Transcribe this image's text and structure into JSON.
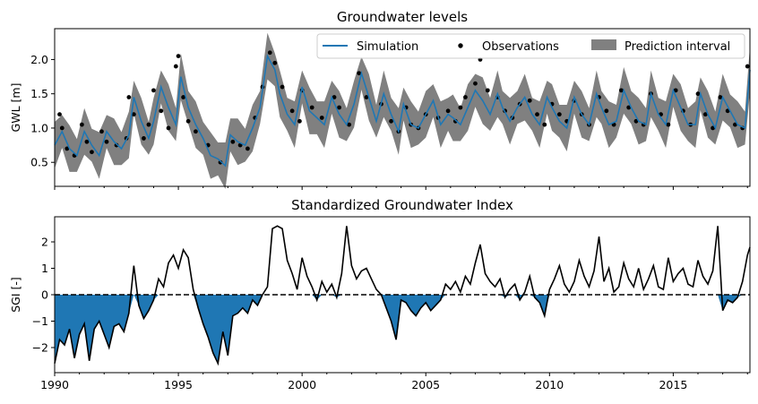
{
  "chart_data": [
    {
      "type": "line",
      "title": "Groundwater levels",
      "ylabel": "GWL [m]",
      "ylim": [
        0.15,
        2.45
      ],
      "xlim": [
        1990,
        2018.1
      ],
      "yticks": [
        "0.5",
        "1.0",
        "1.5",
        "2.0"
      ],
      "legend": {
        "placement": "top-right",
        "entries": [
          "Simulation",
          "Observations",
          "Prediction interval"
        ]
      },
      "interval_halfwidth_m": 0.28,
      "series": [
        {
          "name": "Simulation",
          "color": "#1f77b4",
          "x": [
            1990.0,
            1990.3,
            1990.6,
            1990.9,
            1991.2,
            1991.5,
            1991.8,
            1992.1,
            1992.4,
            1992.7,
            1993.0,
            1993.2,
            1993.5,
            1993.8,
            1994.0,
            1994.3,
            1994.6,
            1994.9,
            1995.1,
            1995.4,
            1995.7,
            1996.0,
            1996.3,
            1996.6,
            1996.9,
            1997.1,
            1997.4,
            1997.7,
            1998.0,
            1998.3,
            1998.6,
            1998.9,
            1999.1,
            1999.4,
            1999.7,
            2000.0,
            2000.3,
            2000.6,
            2000.9,
            2001.2,
            2001.5,
            2001.8,
            2002.1,
            2002.4,
            2002.7,
            2003.0,
            2003.3,
            2003.6,
            2003.9,
            2004.1,
            2004.4,
            2004.7,
            2005.0,
            2005.3,
            2005.6,
            2005.9,
            2006.1,
            2006.4,
            2006.7,
            2007.0,
            2007.3,
            2007.6,
            2007.9,
            2008.1,
            2008.4,
            2008.7,
            2009.0,
            2009.3,
            2009.6,
            2009.9,
            2010.1,
            2010.4,
            2010.7,
            2011.0,
            2011.3,
            2011.6,
            2011.9,
            2012.1,
            2012.4,
            2012.7,
            2013.0,
            2013.3,
            2013.6,
            2013.9,
            2014.1,
            2014.4,
            2014.7,
            2015.0,
            2015.3,
            2015.6,
            2015.9,
            2016.1,
            2016.4,
            2016.7,
            2017.0,
            2017.3,
            2017.6,
            2017.9,
            2018.1
          ],
          "y": [
            0.75,
            0.95,
            0.7,
            0.6,
            0.95,
            0.75,
            0.6,
            0.95,
            0.8,
            0.7,
            0.9,
            1.45,
            1.1,
            0.85,
            1.1,
            1.6,
            1.3,
            1.05,
            1.75,
            1.3,
            1.05,
            0.85,
            0.6,
            0.55,
            0.45,
            0.9,
            0.8,
            0.75,
            1.0,
            1.3,
            2.05,
            1.85,
            1.5,
            1.2,
            1.05,
            1.6,
            1.25,
            1.15,
            1.05,
            1.45,
            1.2,
            1.05,
            1.35,
            1.8,
            1.45,
            1.1,
            1.5,
            1.2,
            0.95,
            1.35,
            1.05,
            1.0,
            1.2,
            1.4,
            1.05,
            1.2,
            1.15,
            1.05,
            1.3,
            1.55,
            1.4,
            1.2,
            1.5,
            1.3,
            1.1,
            1.3,
            1.45,
            1.2,
            1.05,
            1.45,
            1.3,
            1.1,
            1.0,
            1.45,
            1.2,
            1.05,
            1.5,
            1.3,
            1.05,
            1.1,
            1.55,
            1.3,
            1.1,
            1.05,
            1.5,
            1.2,
            1.05,
            1.55,
            1.3,
            1.05,
            1.05,
            1.5,
            1.2,
            1.0,
            1.45,
            1.25,
            1.05,
            1.0,
            1.85
          ]
        },
        {
          "name": "Observations",
          "color": "#000000",
          "x": [
            1990.2,
            1990.3,
            1990.5,
            1990.8,
            1991.1,
            1991.3,
            1991.5,
            1991.9,
            1992.1,
            1992.5,
            1992.9,
            1993.0,
            1993.2,
            1993.6,
            1993.8,
            1994.0,
            1994.3,
            1994.6,
            1994.9,
            1995.0,
            1995.2,
            1995.4,
            1995.7,
            1996.2,
            1996.7,
            1997.2,
            1997.5,
            1997.8,
            1998.1,
            1998.4,
            1998.7,
            1998.9,
            1999.2,
            1999.6,
            1999.9,
            2000.0,
            2000.4,
            2000.8,
            2001.3,
            2001.5,
            2001.9,
            2002.3,
            2002.6,
            2003.2,
            2003.6,
            2003.9,
            2004.2,
            2004.4,
            2004.7,
            2005.0,
            2005.5,
            2005.9,
            2006.2,
            2006.4,
            2006.6,
            2007.0,
            2007.2,
            2007.5,
            2007.9,
            2008.2,
            2008.5,
            2008.8,
            2009.2,
            2009.5,
            2009.8,
            2010.1,
            2010.4,
            2010.7,
            2011.0,
            2011.3,
            2011.6,
            2012.0,
            2012.3,
            2012.6,
            2012.9,
            2013.2,
            2013.5,
            2013.8,
            2014.1,
            2014.5,
            2014.8,
            2015.1,
            2015.4,
            2015.7,
            2016.0,
            2016.3,
            2016.6,
            2016.9,
            2017.2,
            2017.5,
            2017.8,
            2018.0
          ],
          "y": [
            1.2,
            1.0,
            0.7,
            0.6,
            1.05,
            0.8,
            0.65,
            0.95,
            0.8,
            0.75,
            0.85,
            1.45,
            1.2,
            0.85,
            1.05,
            1.55,
            1.25,
            1.0,
            1.9,
            2.05,
            1.45,
            1.1,
            0.95,
            0.75,
            0.5,
            0.8,
            0.75,
            0.7,
            1.15,
            1.6,
            2.1,
            1.95,
            1.6,
            1.25,
            1.1,
            1.55,
            1.3,
            1.15,
            1.45,
            1.3,
            1.05,
            1.8,
            1.45,
            1.35,
            1.1,
            0.95,
            1.3,
            1.05,
            1.0,
            1.2,
            1.15,
            1.25,
            1.1,
            1.3,
            1.45,
            1.65,
            2.0,
            1.55,
            1.45,
            1.25,
            1.15,
            1.35,
            1.4,
            1.2,
            1.05,
            1.35,
            1.2,
            1.1,
            1.4,
            1.2,
            1.05,
            1.45,
            1.25,
            1.05,
            1.55,
            1.3,
            1.1,
            1.05,
            1.5,
            1.2,
            1.05,
            1.55,
            1.25,
            1.05,
            1.5,
            1.2,
            1.0,
            1.45,
            1.25,
            1.05,
            1.0,
            1.9
          ]
        }
      ],
      "xticks": []
    },
    {
      "type": "area",
      "title": "Standardized Groundwater Index",
      "ylabel": "SGI [-]",
      "ylim": [
        -2.95,
        2.95
      ],
      "xlim": [
        1990,
        2018.1
      ],
      "yticks": [
        "−2",
        "−1",
        "0",
        "1",
        "2"
      ],
      "xticks": [
        "1990",
        "1995",
        "2000",
        "2005",
        "2010",
        "2015"
      ],
      "xtick_values": [
        1990,
        1995,
        2000,
        2005,
        2010,
        2015
      ],
      "zero_line": true,
      "fill_negative_color": "#1f77b4",
      "series": [
        {
          "name": "SGI",
          "color": "#000000",
          "x": [
            1990.0,
            1990.2,
            1990.4,
            1990.6,
            1990.8,
            1991.0,
            1991.2,
            1991.4,
            1991.6,
            1991.8,
            1992.0,
            1992.2,
            1992.4,
            1992.6,
            1992.8,
            1993.0,
            1993.2,
            1993.4,
            1993.6,
            1993.8,
            1994.0,
            1994.2,
            1994.4,
            1994.6,
            1994.8,
            1995.0,
            1995.2,
            1995.4,
            1995.6,
            1995.8,
            1996.0,
            1996.2,
            1996.4,
            1996.6,
            1996.8,
            1997.0,
            1997.2,
            1997.4,
            1997.6,
            1997.8,
            1998.0,
            1998.2,
            1998.4,
            1998.6,
            1998.8,
            1999.0,
            1999.2,
            1999.4,
            1999.6,
            1999.8,
            2000.0,
            2000.2,
            2000.4,
            2000.6,
            2000.8,
            2001.0,
            2001.2,
            2001.4,
            2001.6,
            2001.8,
            2002.0,
            2002.2,
            2002.4,
            2002.6,
            2002.8,
            2003.0,
            2003.2,
            2003.4,
            2003.6,
            2003.8,
            2004.0,
            2004.2,
            2004.4,
            2004.6,
            2004.8,
            2005.0,
            2005.2,
            2005.4,
            2005.6,
            2005.8,
            2006.0,
            2006.2,
            2006.4,
            2006.6,
            2006.8,
            2007.0,
            2007.2,
            2007.4,
            2007.6,
            2007.8,
            2008.0,
            2008.2,
            2008.4,
            2008.6,
            2008.8,
            2009.0,
            2009.2,
            2009.4,
            2009.6,
            2009.8,
            2010.0,
            2010.2,
            2010.4,
            2010.6,
            2010.8,
            2011.0,
            2011.2,
            2011.4,
            2011.6,
            2011.8,
            2012.0,
            2012.2,
            2012.4,
            2012.6,
            2012.8,
            2013.0,
            2013.2,
            2013.4,
            2013.6,
            2013.8,
            2014.0,
            2014.2,
            2014.4,
            2014.6,
            2014.8,
            2015.0,
            2015.2,
            2015.4,
            2015.6,
            2015.8,
            2016.0,
            2016.2,
            2016.4,
            2016.6,
            2016.8,
            2017.0,
            2017.2,
            2017.4,
            2017.6,
            2017.8,
            2018.0,
            2018.1
          ],
          "y": [
            -2.6,
            -1.7,
            -1.9,
            -1.3,
            -2.4,
            -1.5,
            -1.1,
            -2.5,
            -1.3,
            -1.0,
            -1.5,
            -2.0,
            -1.2,
            -1.1,
            -1.4,
            -0.7,
            1.1,
            -0.4,
            -0.9,
            -0.6,
            -0.2,
            0.6,
            0.3,
            1.2,
            1.5,
            1.0,
            1.7,
            1.4,
            0.2,
            -0.5,
            -1.1,
            -1.6,
            -2.2,
            -2.6,
            -1.4,
            -2.3,
            -0.8,
            -0.7,
            -0.5,
            -0.7,
            -0.2,
            -0.4,
            0.0,
            0.3,
            2.5,
            2.6,
            2.5,
            1.3,
            0.8,
            0.2,
            1.4,
            0.7,
            0.3,
            -0.2,
            0.5,
            0.1,
            0.4,
            -0.1,
            0.8,
            2.6,
            1.1,
            0.6,
            0.9,
            1.0,
            0.6,
            0.2,
            0.0,
            -0.5,
            -1.0,
            -1.7,
            -0.2,
            -0.3,
            -0.6,
            -0.8,
            -0.5,
            -0.3,
            -0.6,
            -0.4,
            -0.2,
            0.4,
            0.2,
            0.5,
            0.1,
            0.7,
            0.4,
            1.2,
            1.9,
            0.8,
            0.5,
            0.3,
            0.6,
            -0.1,
            0.2,
            0.4,
            -0.2,
            0.1,
            0.7,
            -0.1,
            -0.3,
            -0.8,
            0.2,
            0.6,
            1.1,
            0.4,
            0.1,
            0.5,
            1.3,
            0.7,
            0.3,
            0.9,
            2.2,
            0.5,
            1.0,
            0.1,
            0.3,
            1.2,
            0.6,
            0.3,
            1.0,
            0.2,
            0.6,
            1.1,
            0.3,
            0.2,
            1.4,
            0.5,
            0.8,
            1.0,
            0.4,
            0.3,
            1.3,
            0.7,
            0.4,
            0.9,
            2.6,
            -0.6,
            -0.2,
            -0.3,
            -0.1,
            0.5,
            1.5,
            1.8
          ]
        }
      ]
    }
  ]
}
